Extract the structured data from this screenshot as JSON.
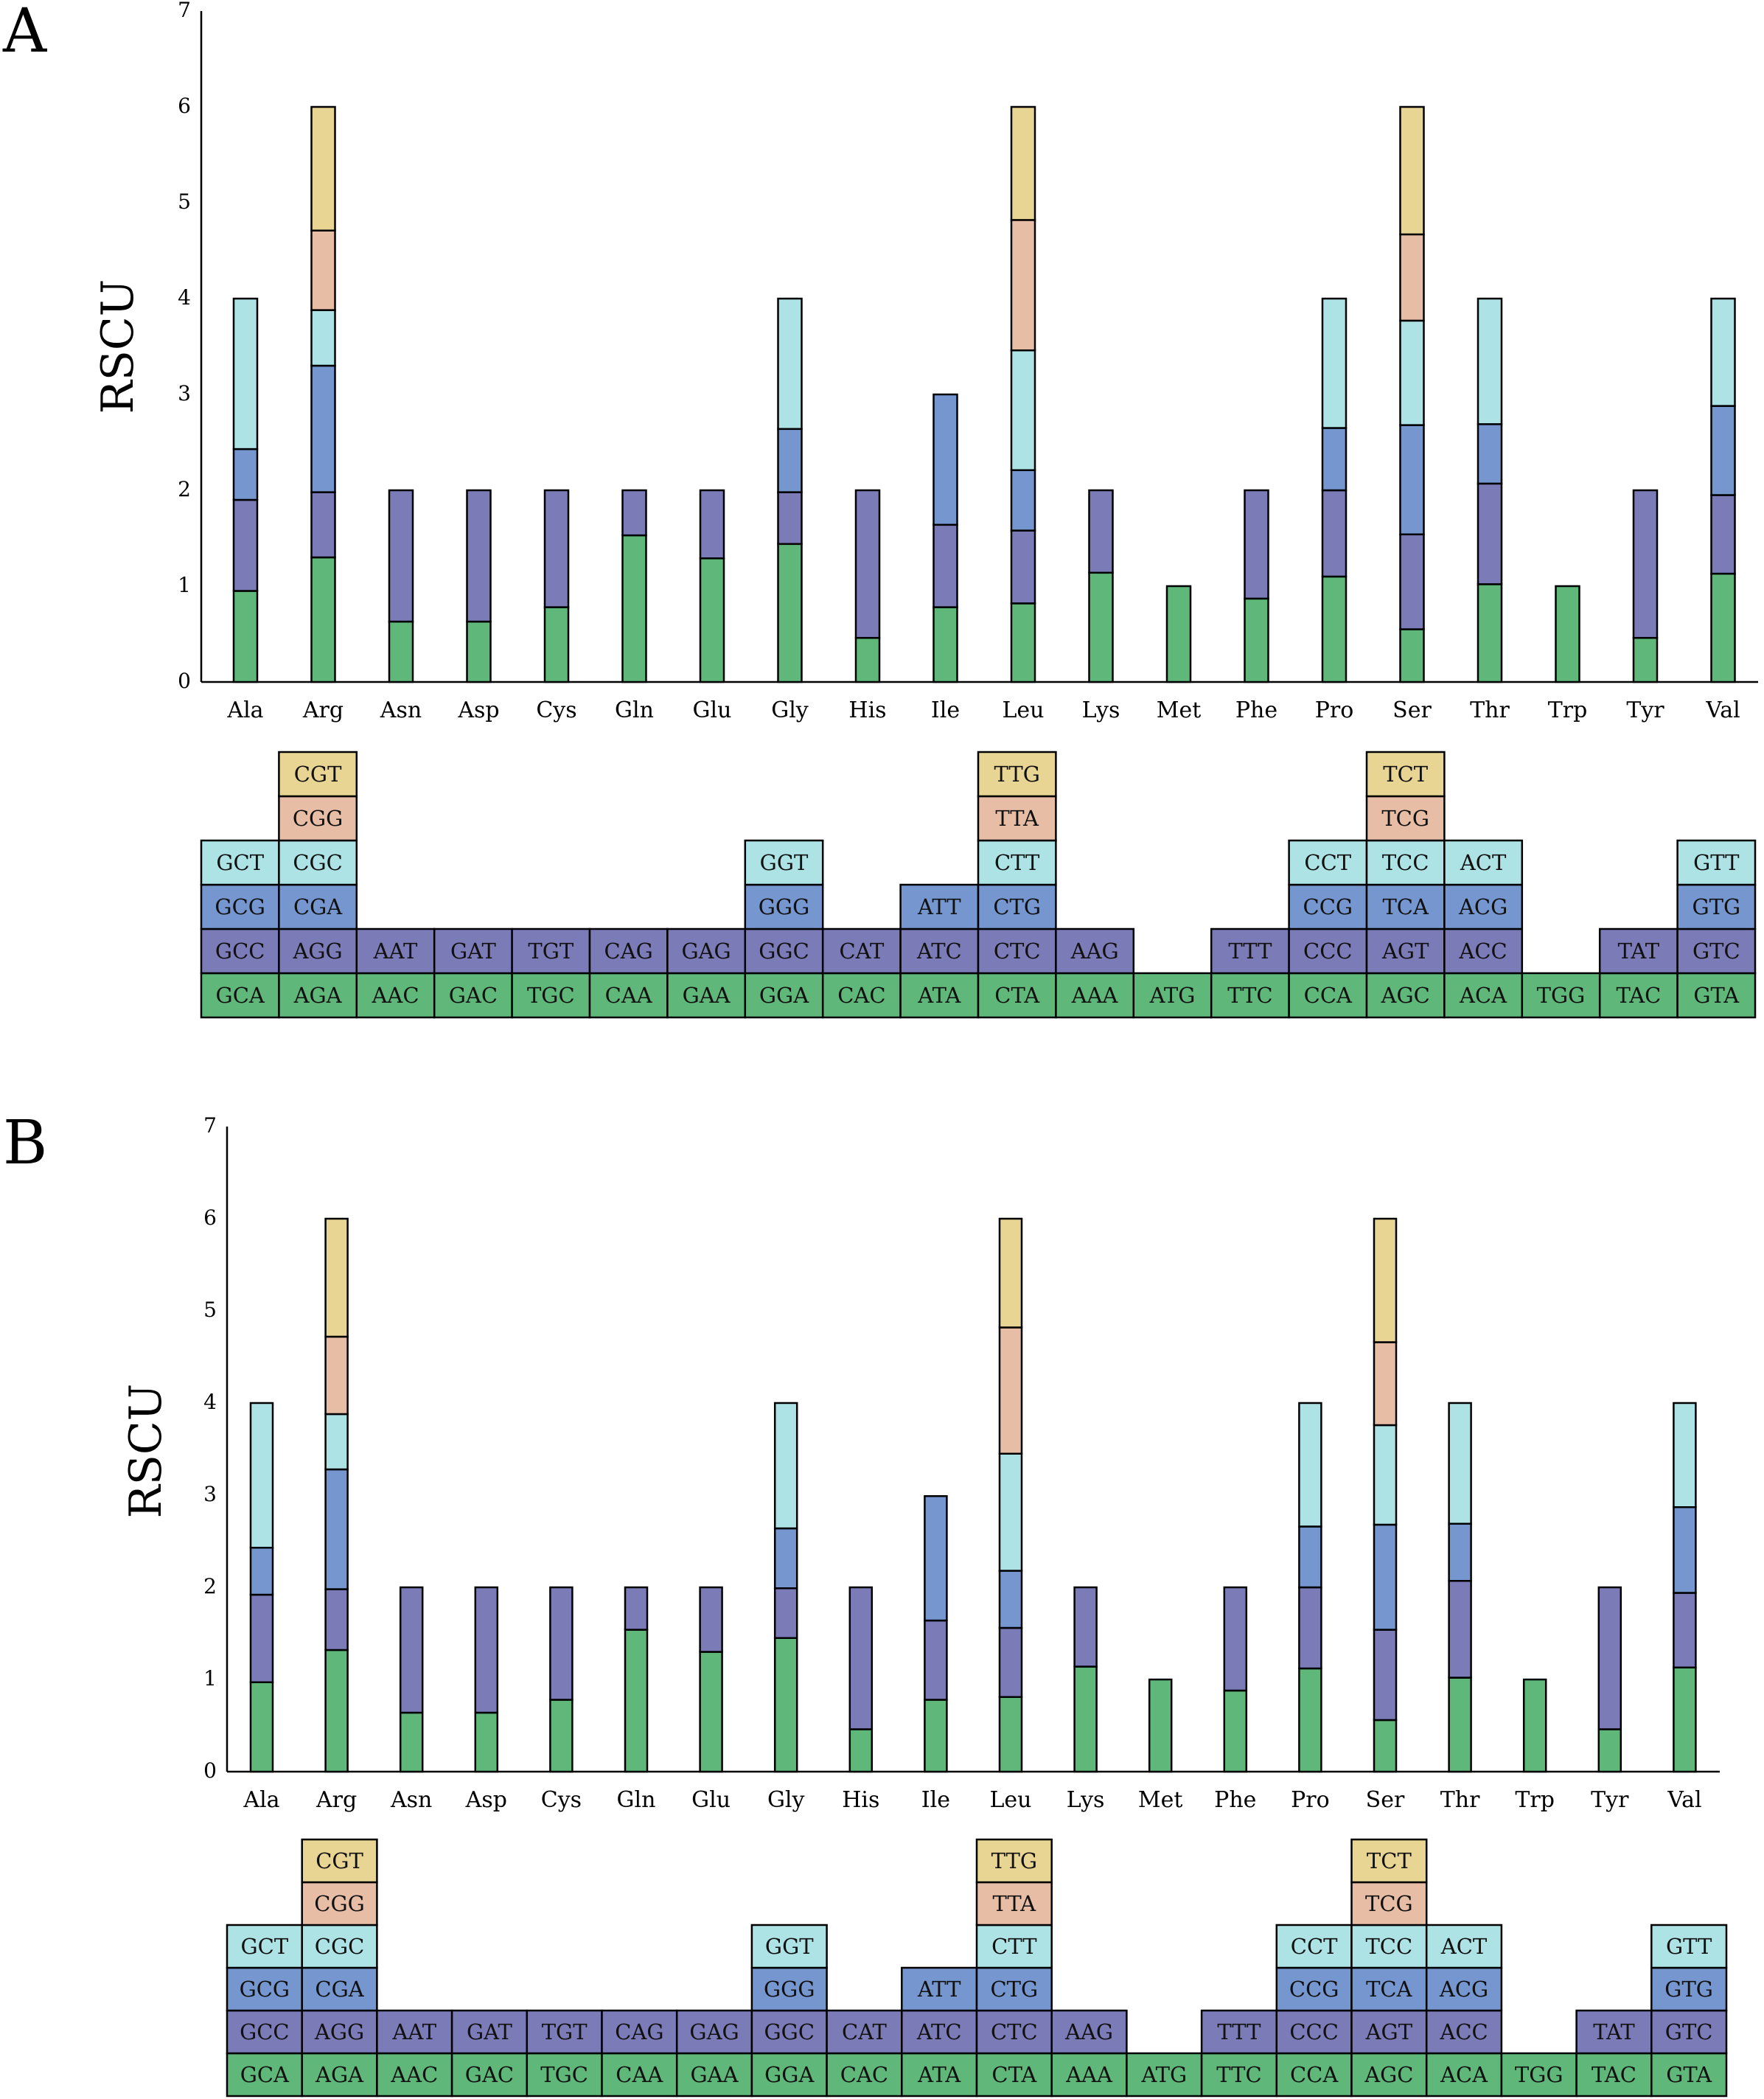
{
  "colors": {
    "level1": "#5fb87a",
    "level2": "#7b7bb8",
    "level3": "#7596cf",
    "level4": "#aee3e6",
    "level5": "#e8bda5",
    "level6": "#e8d493",
    "stroke": "#000000"
  },
  "chart_data": [
    {
      "type": "bar",
      "stacked": true,
      "panel_label": "A",
      "ylabel": "RSCU",
      "xlabel": "",
      "ylim": [
        0,
        7
      ],
      "yticks": [
        "0",
        "1",
        "2",
        "3",
        "4",
        "5",
        "6",
        "7"
      ],
      "categories": [
        "Ala",
        "Arg",
        "Asn",
        "Asp",
        "Cys",
        "Gln",
        "Glu",
        "Gly",
        "His",
        "Ile",
        "Leu",
        "Lys",
        "Met",
        "Phe",
        "Pro",
        "Ser",
        "Thr",
        "Trp",
        "Tyr",
        "Val"
      ],
      "series": [
        {
          "name": "codon level 1",
          "values": [
            0.95,
            1.3,
            0.63,
            0.63,
            0.78,
            1.53,
            1.29,
            1.44,
            0.46,
            0.78,
            0.82,
            1.14,
            1.0,
            0.87,
            1.1,
            0.55,
            1.02,
            1.0,
            0.46,
            1.13
          ]
        },
        {
          "name": "codon level 2",
          "values": [
            0.95,
            0.68,
            1.37,
            1.37,
            1.22,
            0.47,
            0.71,
            0.54,
            1.54,
            0.86,
            0.76,
            0.86,
            0,
            1.13,
            0.9,
            0.99,
            1.05,
            0,
            1.54,
            0.82
          ]
        },
        {
          "name": "codon level 3",
          "values": [
            0.53,
            1.32,
            0,
            0,
            0,
            0,
            0,
            0.66,
            0,
            1.36,
            0.63,
            0,
            0,
            0,
            0.65,
            1.14,
            0.62,
            0,
            0,
            0.93
          ]
        },
        {
          "name": "codon level 4",
          "values": [
            1.57,
            0.58,
            0,
            0,
            0,
            0,
            0,
            1.36,
            0,
            0,
            1.25,
            0,
            0,
            0,
            1.35,
            1.09,
            1.31,
            0,
            0,
            1.12
          ]
        },
        {
          "name": "codon level 5",
          "values": [
            0,
            0.83,
            0,
            0,
            0,
            0,
            0,
            0,
            0,
            0,
            1.36,
            0,
            0,
            0,
            0,
            0.9,
            0,
            0,
            0,
            0
          ]
        },
        {
          "name": "codon level 6",
          "values": [
            0,
            1.29,
            0,
            0,
            0,
            0,
            0,
            0,
            0,
            0,
            1.18,
            0,
            0,
            0,
            0,
            1.33,
            0,
            0,
            0,
            0
          ]
        }
      ],
      "codon_table": [
        [
          "GCA",
          "GCC",
          "GCG",
          "GCT"
        ],
        [
          "AGA",
          "AGG",
          "CGA",
          "CGC",
          "CGG",
          "CGT"
        ],
        [
          "AAC",
          "AAT"
        ],
        [
          "GAC",
          "GAT"
        ],
        [
          "TGC",
          "TGT"
        ],
        [
          "CAA",
          "CAG"
        ],
        [
          "GAA",
          "GAG"
        ],
        [
          "GGA",
          "GGC",
          "GGG",
          "GGT"
        ],
        [
          "CAC",
          "CAT"
        ],
        [
          "ATA",
          "ATC",
          "ATT"
        ],
        [
          "CTA",
          "CTC",
          "CTG",
          "CTT",
          "TTA",
          "TTG"
        ],
        [
          "AAA",
          "AAG"
        ],
        [
          "ATG"
        ],
        [
          "TTC",
          "TTT"
        ],
        [
          "CCA",
          "CCC",
          "CCG",
          "CCT"
        ],
        [
          "AGC",
          "AGT",
          "TCA",
          "TCC",
          "TCG",
          "TCT"
        ],
        [
          "ACA",
          "ACC",
          "ACG",
          "ACT"
        ],
        [
          "TGG"
        ],
        [
          "TAC",
          "TAT"
        ],
        [
          "GTA",
          "GTC",
          "GTG",
          "GTT"
        ]
      ]
    },
    {
      "type": "bar",
      "stacked": true,
      "panel_label": "B",
      "ylabel": "RSCU",
      "xlabel": "",
      "ylim": [
        0,
        7
      ],
      "yticks": [
        "0",
        "1",
        "2",
        "3",
        "4",
        "5",
        "6",
        "7"
      ],
      "categories": [
        "Ala",
        "Arg",
        "Asn",
        "Asp",
        "Cys",
        "Gln",
        "Glu",
        "Gly",
        "His",
        "Ile",
        "Leu",
        "Lys",
        "Met",
        "Phe",
        "Pro",
        "Ser",
        "Thr",
        "Trp",
        "Tyr",
        "Val"
      ],
      "series": [
        {
          "name": "codon level 1",
          "values": [
            0.97,
            1.32,
            0.64,
            0.64,
            0.78,
            1.54,
            1.3,
            1.45,
            0.46,
            0.78,
            0.81,
            1.14,
            1.0,
            0.88,
            1.12,
            0.56,
            1.02,
            1.0,
            0.46,
            1.13
          ]
        },
        {
          "name": "codon level 2",
          "values": [
            0.95,
            0.66,
            1.36,
            1.36,
            1.22,
            0.46,
            0.7,
            0.54,
            1.54,
            0.86,
            0.75,
            0.86,
            0,
            1.12,
            0.88,
            0.98,
            1.05,
            0,
            1.54,
            0.81
          ]
        },
        {
          "name": "codon level 3",
          "values": [
            0.51,
            1.3,
            0,
            0,
            0,
            0,
            0,
            0.65,
            0,
            1.35,
            0.62,
            0,
            0,
            0,
            0.66,
            1.14,
            0.62,
            0,
            0,
            0.93
          ]
        },
        {
          "name": "codon level 4",
          "values": [
            1.57,
            0.6,
            0,
            0,
            0,
            0,
            0,
            1.36,
            0,
            0,
            1.27,
            0,
            0,
            0,
            1.34,
            1.08,
            1.31,
            0,
            0,
            1.13
          ]
        },
        {
          "name": "codon level 5",
          "values": [
            0,
            0.84,
            0,
            0,
            0,
            0,
            0,
            0,
            0,
            0,
            1.37,
            0,
            0,
            0,
            0,
            0.9,
            0,
            0,
            0,
            0
          ]
        },
        {
          "name": "codon level 6",
          "values": [
            0,
            1.28,
            0,
            0,
            0,
            0,
            0,
            0,
            0,
            0,
            1.18,
            0,
            0,
            0,
            0,
            1.34,
            0,
            0,
            0,
            0
          ]
        }
      ],
      "codon_table": [
        [
          "GCA",
          "GCC",
          "GCG",
          "GCT"
        ],
        [
          "AGA",
          "AGG",
          "CGA",
          "CGC",
          "CGG",
          "CGT"
        ],
        [
          "AAC",
          "AAT"
        ],
        [
          "GAC",
          "GAT"
        ],
        [
          "TGC",
          "TGT"
        ],
        [
          "CAA",
          "CAG"
        ],
        [
          "GAA",
          "GAG"
        ],
        [
          "GGA",
          "GGC",
          "GGG",
          "GGT"
        ],
        [
          "CAC",
          "CAT"
        ],
        [
          "ATA",
          "ATC",
          "ATT"
        ],
        [
          "CTA",
          "CTC",
          "CTG",
          "CTT",
          "TTA",
          "TTG"
        ],
        [
          "AAA",
          "AAG"
        ],
        [
          "ATG"
        ],
        [
          "TTC",
          "TTT"
        ],
        [
          "CCA",
          "CCC",
          "CCG",
          "CCT"
        ],
        [
          "AGC",
          "AGT",
          "TCA",
          "TCC",
          "TCG",
          "TCT"
        ],
        [
          "ACA",
          "ACC",
          "ACG",
          "ACT"
        ],
        [
          "TGG"
        ],
        [
          "TAC",
          "TAT"
        ],
        [
          "GTA",
          "GTC",
          "GTG",
          "GTT"
        ]
      ]
    }
  ]
}
